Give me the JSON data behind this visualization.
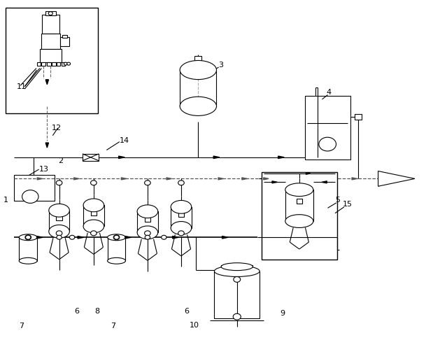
{
  "line_color": "#000000",
  "bg_color": "#ffffff",
  "fig_width": 6.19,
  "fig_height": 4.96
}
